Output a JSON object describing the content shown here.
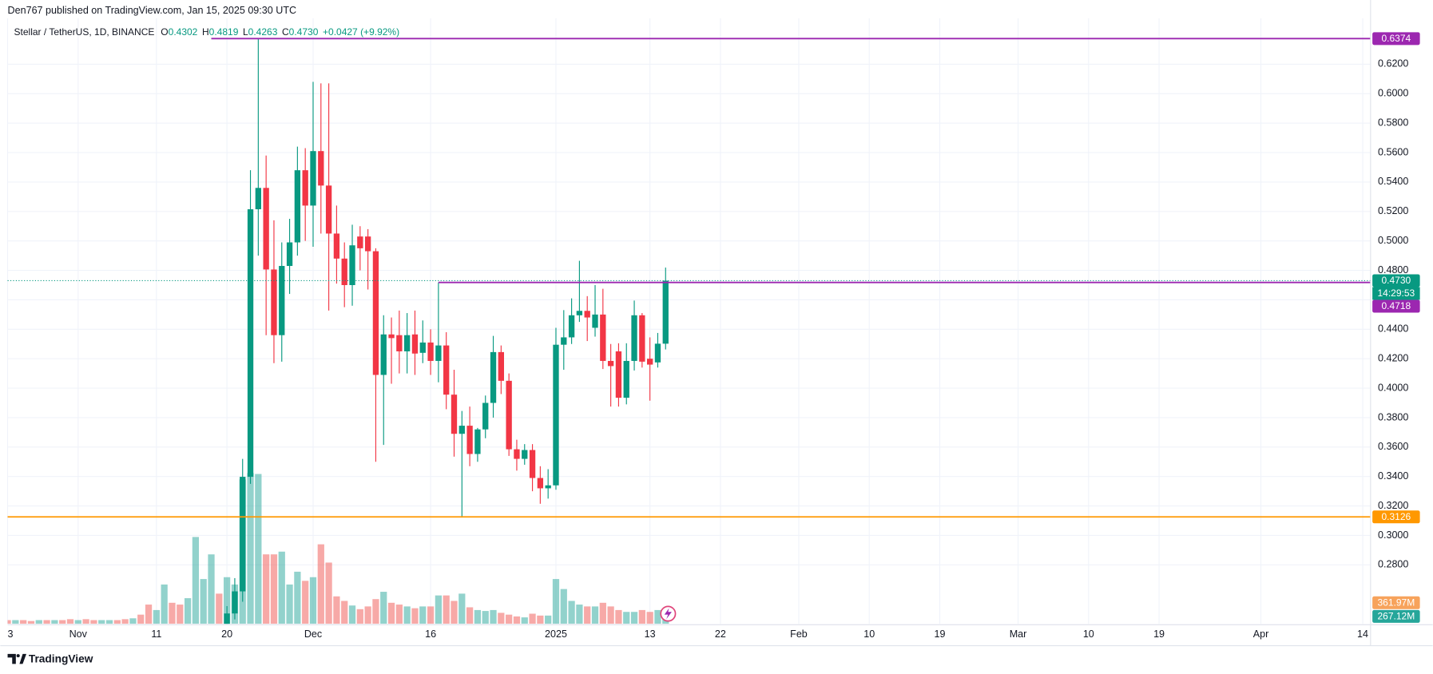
{
  "header": "Den767 published on TradingView.com, Jan 15, 2025 09:30 UTC",
  "footer": "TradingView",
  "chart_data": {
    "type": "candlestick",
    "legend": {
      "symbol": "Stellar / TetherUS, 1D, BINANCE",
      "o": "O",
      "h": "H",
      "l": "L",
      "c": "C",
      "change": "+0.0427 (+9.92%)"
    },
    "up_color": "#089981",
    "down_color": "#f23645",
    "x": [
      "2024-11-20",
      "2024-11-21",
      "2024-11-22",
      "2024-11-23",
      "2024-11-24",
      "2024-11-25",
      "2024-11-26",
      "2024-11-27",
      "2024-11-28",
      "2024-11-29",
      "2024-11-30",
      "2024-12-01",
      "2024-12-02",
      "2024-12-03",
      "2024-12-04",
      "2024-12-05",
      "2024-12-06",
      "2024-12-07",
      "2024-12-08",
      "2024-12-09",
      "2024-12-10",
      "2024-12-11",
      "2024-12-12",
      "2024-12-13",
      "2024-12-14",
      "2024-12-15",
      "2024-12-16",
      "2024-12-17",
      "2024-12-18",
      "2024-12-19",
      "2024-12-20",
      "2024-12-21",
      "2024-12-22",
      "2024-12-23",
      "2024-12-24",
      "2024-12-25",
      "2024-12-26",
      "2024-12-27",
      "2024-12-28",
      "2024-12-29",
      "2024-12-30",
      "2024-12-31",
      "2025-01-01",
      "2025-01-02",
      "2025-01-03",
      "2025-01-04",
      "2025-01-05",
      "2025-01-06",
      "2025-01-07",
      "2025-01-08",
      "2025-01-09",
      "2025-01-10",
      "2025-01-11",
      "2025-01-12",
      "2025-01-13",
      "2025-01-14",
      "2025-01-15"
    ],
    "open": [
      0.238,
      0.247,
      0.262,
      0.3398,
      0.5215,
      0.536,
      0.4806,
      0.436,
      0.483,
      0.499,
      0.548,
      0.524,
      0.561,
      0.5376,
      0.505,
      0.488,
      0.47,
      0.503,
      0.503,
      0.493,
      0.409,
      0.4365,
      0.436,
      0.425,
      0.4365,
      0.424,
      0.431,
      0.4185,
      0.429,
      0.3956,
      0.369,
      0.3745,
      0.3553,
      0.372,
      0.39,
      0.4245,
      0.405,
      0.3585,
      0.352,
      0.358,
      0.339,
      0.332,
      0.334,
      0.4295,
      0.4345,
      0.4495,
      0.4525,
      0.441,
      0.45,
      0.4185,
      0.425,
      0.3935,
      0.4185,
      0.4495,
      0.42,
      0.4175,
      0.4302
    ],
    "high": [
      0.252,
      0.271,
      0.352,
      0.548,
      0.6374,
      0.558,
      0.514,
      0.499,
      0.515,
      0.564,
      0.563,
      0.608,
      0.607,
      0.607,
      0.524,
      0.499,
      0.511,
      0.51,
      0.508,
      0.495,
      0.4495,
      0.448,
      0.4527,
      0.451,
      0.4527,
      0.446,
      0.44,
      0.4718,
      0.438,
      0.4125,
      0.3845,
      0.3875,
      0.373,
      0.395,
      0.4355,
      0.429,
      0.41,
      0.365,
      0.362,
      0.362,
      0.347,
      0.345,
      0.441,
      0.453,
      0.461,
      0.4865,
      0.4625,
      0.47,
      0.4675,
      0.43,
      0.4305,
      0.4305,
      0.4595,
      0.451,
      0.4345,
      0.4375,
      0.4819
    ],
    "low": [
      0.235,
      0.243,
      0.255,
      0.335,
      0.49,
      0.436,
      0.417,
      0.418,
      0.464,
      0.49,
      0.5,
      0.496,
      0.505,
      0.4527,
      0.471,
      0.455,
      0.456,
      0.48,
      0.467,
      0.35,
      0.3615,
      0.403,
      0.41,
      0.41,
      0.409,
      0.417,
      0.409,
      0.404,
      0.3857,
      0.3535,
      0.3126,
      0.347,
      0.35,
      0.366,
      0.38,
      0.396,
      0.354,
      0.344,
      0.348,
      0.33,
      0.3215,
      0.325,
      0.331,
      0.4125,
      0.43,
      0.445,
      0.432,
      0.435,
      0.413,
      0.3875,
      0.3875,
      0.389,
      0.412,
      0.414,
      0.3915,
      0.414,
      0.4263
    ],
    "close": [
      0.247,
      0.262,
      0.3398,
      0.5215,
      0.536,
      0.4806,
      0.436,
      0.483,
      0.499,
      0.548,
      0.524,
      0.561,
      0.5376,
      0.505,
      0.488,
      0.47,
      0.497,
      0.495,
      0.493,
      0.409,
      0.4365,
      0.434,
      0.425,
      0.436,
      0.4235,
      0.431,
      0.4185,
      0.429,
      0.3956,
      0.369,
      0.3745,
      0.3553,
      0.372,
      0.39,
      0.4245,
      0.405,
      0.3585,
      0.352,
      0.358,
      0.339,
      0.332,
      0.334,
      0.4295,
      0.4345,
      0.4495,
      0.4525,
      0.448,
      0.45,
      0.4185,
      0.415,
      0.3935,
      0.4185,
      0.4495,
      0.418,
      0.416,
      0.4302,
      0.473
    ],
    "xlim": [
      "2024-10-23",
      "2025-04-15"
    ],
    "xticks": [
      {
        "value": "2024-10-23",
        "label": "3"
      },
      {
        "value": "2024-11-01",
        "label": "Nov"
      },
      {
        "value": "2024-11-11",
        "label": "11"
      },
      {
        "value": "2024-11-20",
        "label": "20"
      },
      {
        "value": "2024-12-01",
        "label": "Dec"
      },
      {
        "value": "2024-12-16",
        "label": "16"
      },
      {
        "value": "2025-01-01",
        "label": "2025"
      },
      {
        "value": "2025-01-13",
        "label": "13"
      },
      {
        "value": "2025-01-22",
        "label": "22"
      },
      {
        "value": "2025-02-01",
        "label": "Feb"
      },
      {
        "value": "2025-02-10",
        "label": "10"
      },
      {
        "value": "2025-02-19",
        "label": "19"
      },
      {
        "value": "2025-03-01",
        "label": "Mar"
      },
      {
        "value": "2025-03-10",
        "label": "10"
      },
      {
        "value": "2025-03-19",
        "label": "19"
      },
      {
        "value": "2025-04-01",
        "label": "Apr"
      },
      {
        "value": "2025-04-14",
        "label": "14"
      }
    ],
    "ylim": [
      0.24,
      0.645
    ],
    "yticks": [
      {
        "value": 0.28,
        "label": "0.2800"
      },
      {
        "value": 0.3,
        "label": "0.3000"
      },
      {
        "value": 0.32,
        "label": "0.3200"
      },
      {
        "value": 0.34,
        "label": "0.3400"
      },
      {
        "value": 0.36,
        "label": "0.3600"
      },
      {
        "value": 0.38,
        "label": "0.3800"
      },
      {
        "value": 0.4,
        "label": "0.4000"
      },
      {
        "value": 0.42,
        "label": "0.4200"
      },
      {
        "value": 0.44,
        "label": "0.4400"
      },
      {
        "value": 0.46,
        "label": "0.4600"
      },
      {
        "value": 0.48,
        "label": "0.4800"
      },
      {
        "value": 0.5,
        "label": "0.5000"
      },
      {
        "value": 0.52,
        "label": "0.5200"
      },
      {
        "value": 0.54,
        "label": "0.5400"
      },
      {
        "value": 0.56,
        "label": "0.5600"
      },
      {
        "value": 0.58,
        "label": "0.5800"
      },
      {
        "value": 0.6,
        "label": "0.6000"
      },
      {
        "value": 0.62,
        "label": "0.6200"
      }
    ],
    "grid": true,
    "last_price": {
      "value": 0.473,
      "label": "0.4730"
    },
    "last_price_color": "#089981",
    "countdown": "14:29:53",
    "price_lines": [
      {
        "value": 0.6374,
        "color": "#9c27b0",
        "start": "2024-11-18"
      },
      {
        "value": 0.4718,
        "color": "#9c27b0",
        "start": "2024-12-17"
      },
      {
        "value": 0.3126,
        "color": "#ff9800",
        "start": "2024-10-23"
      }
    ],
    "volume": {
      "x": [
        "2024-10-23",
        "2024-10-24",
        "2024-10-25",
        "2024-10-26",
        "2024-10-27",
        "2024-10-28",
        "2024-10-29",
        "2024-10-30",
        "2024-10-31",
        "2024-11-01",
        "2024-11-02",
        "2024-11-03",
        "2024-11-04",
        "2024-11-05",
        "2024-11-06",
        "2024-11-07",
        "2024-11-08",
        "2024-11-09",
        "2024-11-10",
        "2024-11-11",
        "2024-11-12",
        "2024-11-13",
        "2024-11-14",
        "2024-11-15",
        "2024-11-16",
        "2024-11-17",
        "2024-11-18",
        "2024-11-19",
        "2024-11-20",
        "2024-11-21",
        "2024-11-22",
        "2024-11-23",
        "2024-11-24",
        "2024-11-25",
        "2024-11-26",
        "2024-11-27",
        "2024-11-28",
        "2024-11-29",
        "2024-11-30",
        "2024-12-01",
        "2024-12-02",
        "2024-12-03",
        "2024-12-04",
        "2024-12-05",
        "2024-12-06",
        "2024-12-07",
        "2024-12-08",
        "2024-12-09",
        "2024-12-10",
        "2024-12-11",
        "2024-12-12",
        "2024-12-13",
        "2024-12-14",
        "2024-12-15",
        "2024-12-16",
        "2024-12-17",
        "2024-12-18",
        "2024-12-19",
        "2024-12-20",
        "2024-12-21",
        "2024-12-22",
        "2024-12-23",
        "2024-12-24",
        "2024-12-25",
        "2024-12-26",
        "2024-12-27",
        "2024-12-28",
        "2024-12-29",
        "2024-12-30",
        "2024-12-31",
        "2025-01-01",
        "2025-01-02",
        "2025-01-03",
        "2025-01-04",
        "2025-01-05",
        "2025-01-06",
        "2025-01-07",
        "2025-01-08",
        "2025-01-09",
        "2025-01-10",
        "2025-01-11",
        "2025-01-12",
        "2025-01-13",
        "2025-01-14",
        "2025-01-15"
      ],
      "values": [
        63,
        63,
        63,
        47,
        63,
        63,
        63,
        63,
        79,
        63,
        79,
        63,
        63,
        63,
        63,
        79,
        94,
        157,
        330,
        236,
        675,
        361,
        330,
        440,
        1492,
        769,
        1193,
        518,
        801,
        675,
        2481,
        2591,
        2575,
        1193,
        1193,
        1240,
        675,
        895,
        738,
        801,
        1366,
        1052,
        471,
        393,
        314,
        251,
        298,
        424,
        550,
        361,
        330,
        298,
        267,
        298,
        298,
        487,
        487,
        393,
        518,
        283,
        236,
        220,
        236,
        188,
        157,
        126,
        110,
        173,
        141,
        141,
        769,
        597,
        393,
        330,
        298,
        298,
        361,
        298,
        236,
        204,
        204,
        236,
        204,
        236,
        267.12
      ],
      "colors": [
        "#ef535080",
        "#26a69a80",
        "#ef535080",
        "#ef535080",
        "#26a69a80",
        "#ef535080",
        "#26a69a80",
        "#ef535080",
        "#ef535080",
        "#26a69a80",
        "#ef535080",
        "#ef535080",
        "#26a69a80",
        "#26a69a80",
        "#ef535080",
        "#ef535080",
        "#26a69a80",
        "#ef535080",
        "#ef535080",
        "#26a69a80",
        "#26a69a80",
        "#ef535080",
        "#ef535080",
        "#26a69a80",
        "#26a69a80",
        "#26a69a80",
        "#26a69a80",
        "#ef535080",
        "#26a69a80",
        "#26a69a80",
        "#26a69a80",
        "#26a69a80",
        "#26a69a80",
        "#ef535080",
        "#ef535080",
        "#26a69a80",
        "#26a69a80",
        "#26a69a80",
        "#ef535080",
        "#26a69a80",
        "#ef535080",
        "#ef535080",
        "#ef535080",
        "#ef535080",
        "#26a69a80",
        "#ef535080",
        "#ef535080",
        "#ef535080",
        "#26a69a80",
        "#ef535080",
        "#ef535080",
        "#26a69a80",
        "#ef535080",
        "#26a69a80",
        "#ef535080",
        "#26a69a80",
        "#ef535080",
        "#ef535080",
        "#26a69a80",
        "#ef535080",
        "#26a69a80",
        "#26a69a80",
        "#26a69a80",
        "#ef535080",
        "#ef535080",
        "#ef535080",
        "#26a69a80",
        "#ef535080",
        "#ef535080",
        "#26a69a80",
        "#26a69a80",
        "#26a69a80",
        "#26a69a80",
        "#26a69a80",
        "#ef535080",
        "#26a69a80",
        "#ef535080",
        "#ef535080",
        "#ef535080",
        "#26a69a80",
        "#26a69a80",
        "#ef535080",
        "#ef535080",
        "#26a69a80",
        "#26a69a80"
      ],
      "ylim": [
        0,
        3140
      ],
      "last_label": "267.12M",
      "last_color": "#26a69a",
      "ma": {
        "value": 361.97,
        "label": "361.97M"
      },
      "ma_color": "#f7a35c"
    }
  }
}
